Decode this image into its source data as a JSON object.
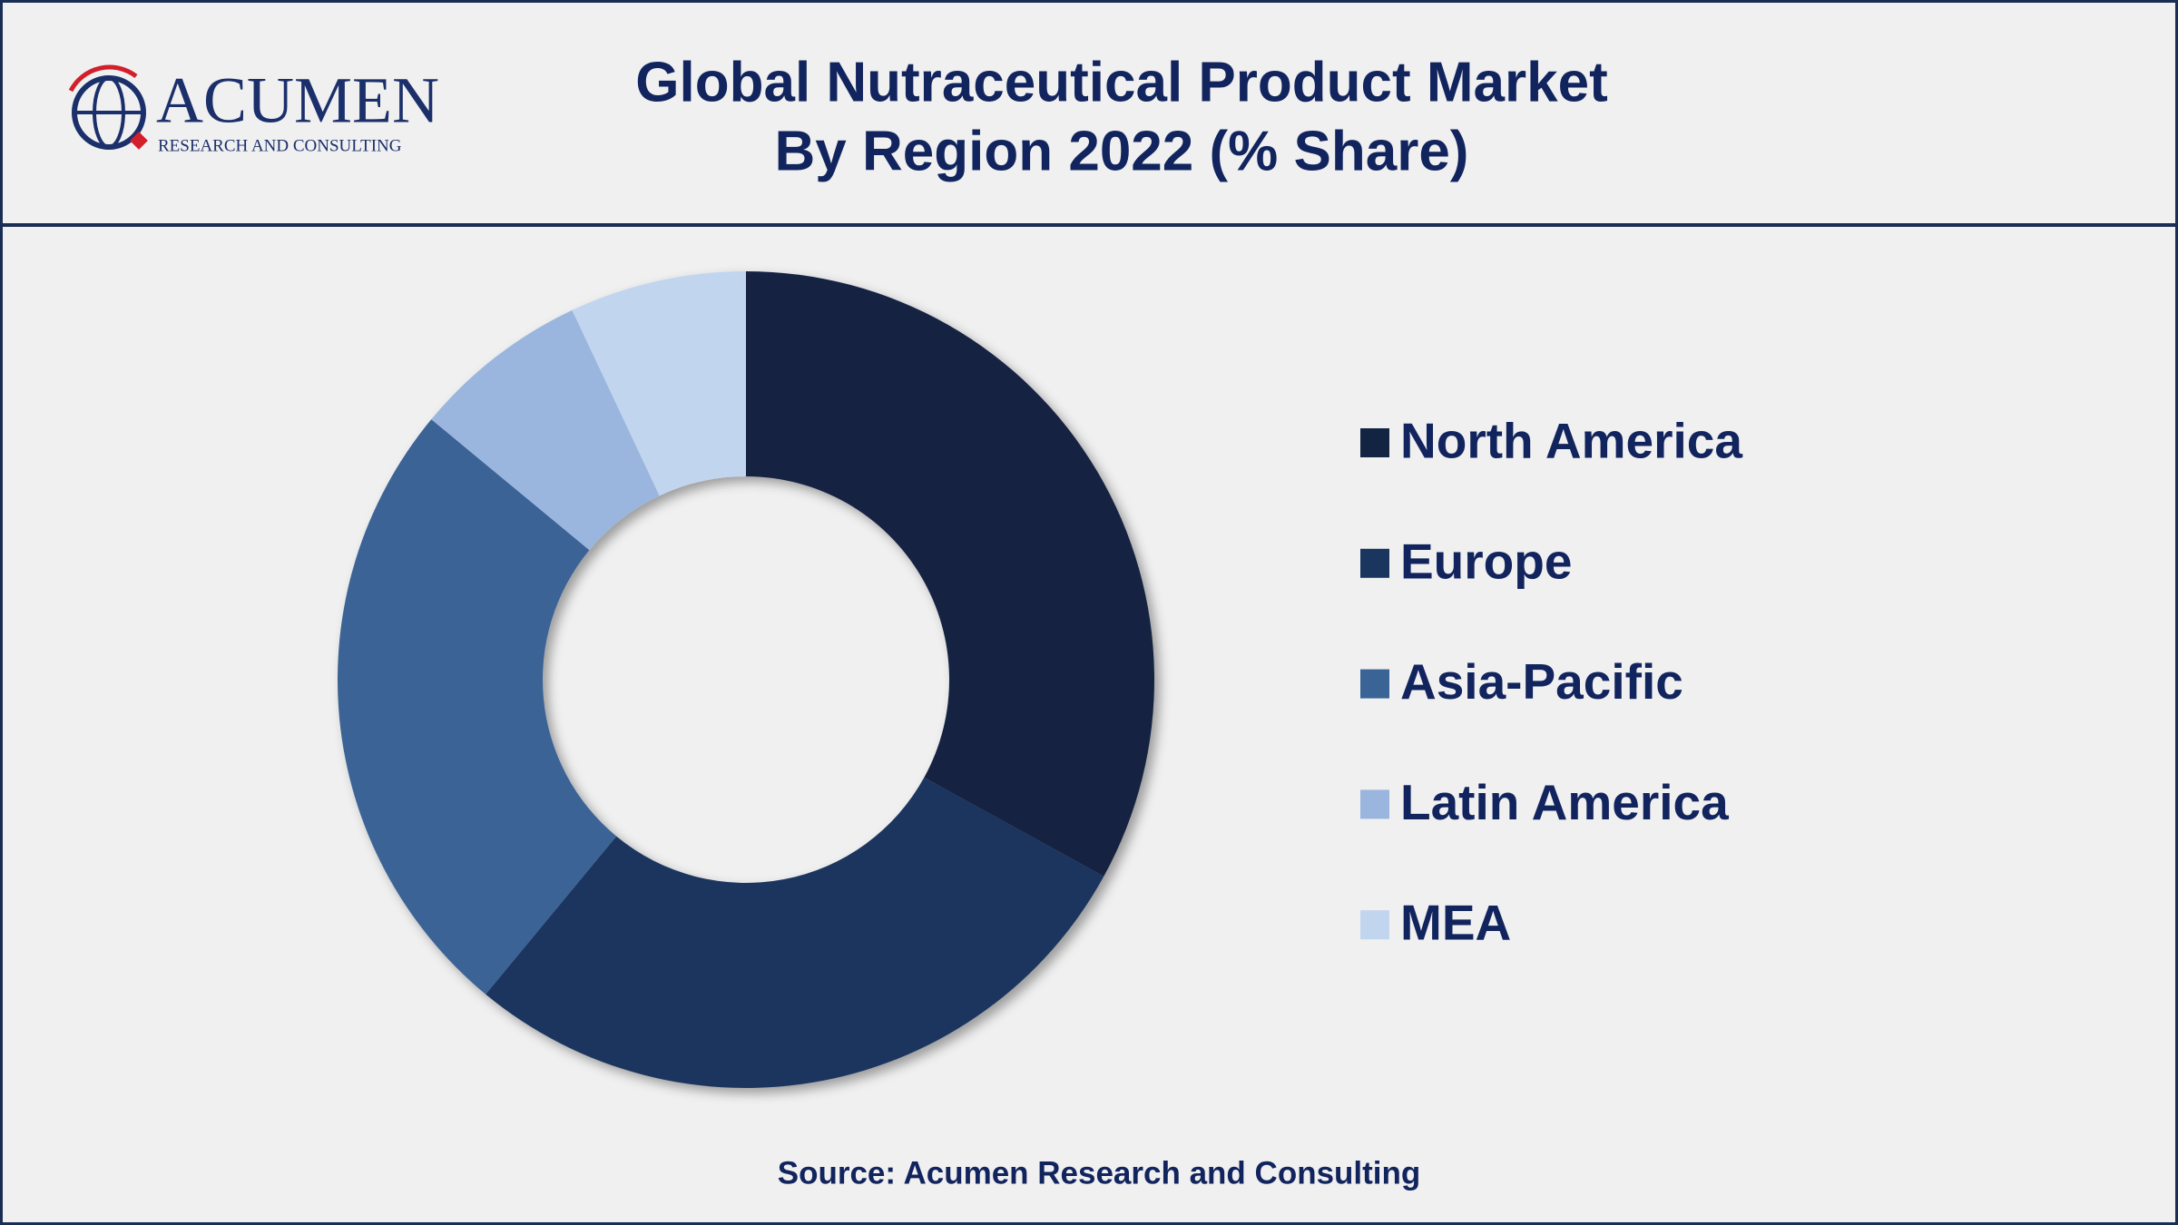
{
  "logo": {
    "name": "ACUMEN",
    "tagline": "RESEARCH AND CONSULTING"
  },
  "chart_data": {
    "type": "donut",
    "title": [
      "Global Nutraceutical Product Market",
      "By Region 2022 (% Share)"
    ],
    "categories": [
      "North America",
      "Europe",
      "Asia-Pacific",
      "Latin America",
      "MEA"
    ],
    "values": [
      33,
      28,
      25,
      7,
      7
    ],
    "colors": [
      "#132442",
      "#1b365e",
      "#3a6496",
      "#9ab6de",
      "#c2d5ef"
    ],
    "source": "Source: Acumen Research and Consulting"
  }
}
